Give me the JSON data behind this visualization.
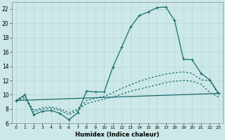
{
  "xlabel": "Humidex (Indice chaleur)",
  "xlim": [
    -0.5,
    23.5
  ],
  "ylim": [
    6,
    23
  ],
  "xticks": [
    0,
    1,
    2,
    3,
    4,
    5,
    6,
    7,
    8,
    9,
    10,
    11,
    12,
    13,
    14,
    15,
    16,
    17,
    18,
    19,
    20,
    21,
    22,
    23
  ],
  "yticks": [
    6,
    8,
    10,
    12,
    14,
    16,
    18,
    20,
    22
  ],
  "bg_color": "#cce8e8",
  "grid_color": "#b8d8d8",
  "line_color": "#1a6b6b",
  "line1": {
    "x": [
      0,
      1,
      2,
      3,
      4,
      5,
      6,
      7,
      8,
      9,
      10,
      11,
      12,
      13,
      14,
      15,
      16,
      17,
      18,
      19,
      20,
      21,
      22,
      23
    ],
    "y": [
      9.2,
      10.0,
      7.2,
      7.7,
      7.8,
      7.4,
      6.5,
      7.5,
      10.5,
      10.4,
      10.4,
      13.9,
      16.7,
      19.5,
      21.1,
      21.6,
      22.2,
      22.3,
      20.4,
      15.0,
      14.9,
      13.0,
      12.1,
      10.2
    ]
  },
  "line2": {
    "x": [
      0,
      1,
      2,
      3,
      4,
      5,
      6,
      7,
      8,
      9,
      10,
      11,
      12,
      13,
      14,
      15,
      16,
      17,
      18,
      19,
      20,
      21,
      22,
      23
    ],
    "y": [
      9.2,
      9.8,
      7.8,
      8.2,
      8.3,
      8.0,
      7.5,
      8.0,
      9.2,
      9.5,
      9.8,
      10.3,
      10.9,
      11.4,
      11.9,
      12.3,
      12.6,
      12.9,
      13.1,
      13.2,
      13.0,
      12.1,
      12.0,
      10.0
    ]
  },
  "line3": {
    "x": [
      0,
      23
    ],
    "y": [
      9.2,
      10.2
    ]
  },
  "line4": {
    "x": [
      0,
      1,
      2,
      3,
      4,
      5,
      6,
      7,
      8,
      9,
      10,
      11,
      12,
      13,
      14,
      15,
      16,
      17,
      18,
      19,
      20,
      21,
      22,
      23
    ],
    "y": [
      9.2,
      9.5,
      7.6,
      8.0,
      8.1,
      7.8,
      7.2,
      7.8,
      8.8,
      9.1,
      9.4,
      9.7,
      10.1,
      10.5,
      10.8,
      11.1,
      11.4,
      11.7,
      11.9,
      12.0,
      11.9,
      11.5,
      10.3,
      9.7
    ]
  }
}
